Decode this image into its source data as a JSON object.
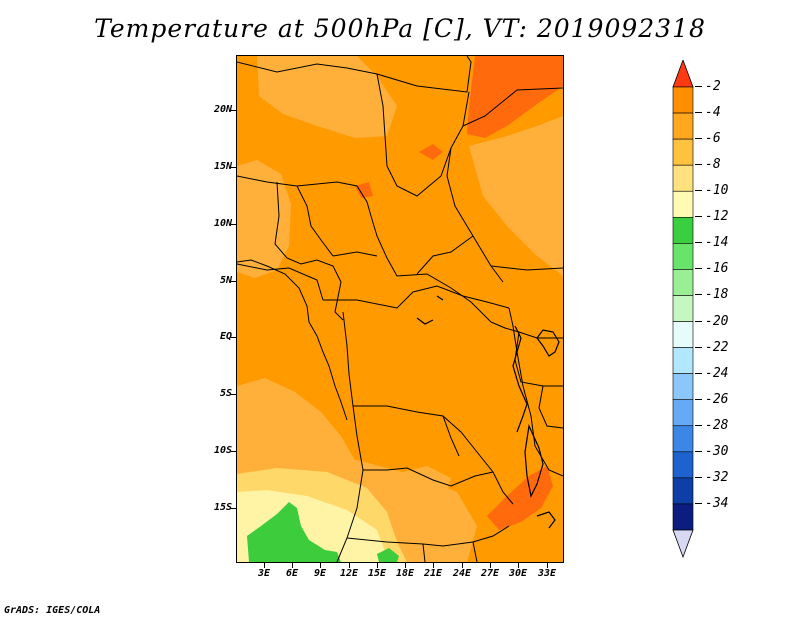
{
  "title": "Temperature at 500hPa [C], VT: 2019092318",
  "footer": "GrADS: IGES/COLA",
  "map": {
    "lat_labels": [
      "20N",
      "15N",
      "10N",
      "5N",
      "EQ",
      "5S",
      "10S",
      "15S"
    ],
    "lon_labels": [
      "3E",
      "6E",
      "9E",
      "12E",
      "15E",
      "18E",
      "21E",
      "24E",
      "27E",
      "30E",
      "33E"
    ],
    "background_band": "-6"
  },
  "colorbar": {
    "labels": [
      "-2",
      "-4",
      "-6",
      "-8",
      "-10",
      "-12",
      "-14",
      "-16",
      "-18",
      "-20",
      "-22",
      "-24",
      "-26",
      "-28",
      "-30",
      "-32",
      "-34"
    ],
    "colors": [
      "#ff5a10",
      "#ff8e00",
      "#ffa81f",
      "#ffc23f",
      "#ffe27f",
      "#fffbb3",
      "#39cf3f",
      "#69e46a",
      "#9aef95",
      "#c5f8c0",
      "#e6fcfa",
      "#b3e6ff",
      "#8cc7fb",
      "#66aaf5",
      "#3c86e6",
      "#1d62ce",
      "#0d3fa6",
      "#0c1d80",
      "#d8d8f4"
    ]
  }
}
